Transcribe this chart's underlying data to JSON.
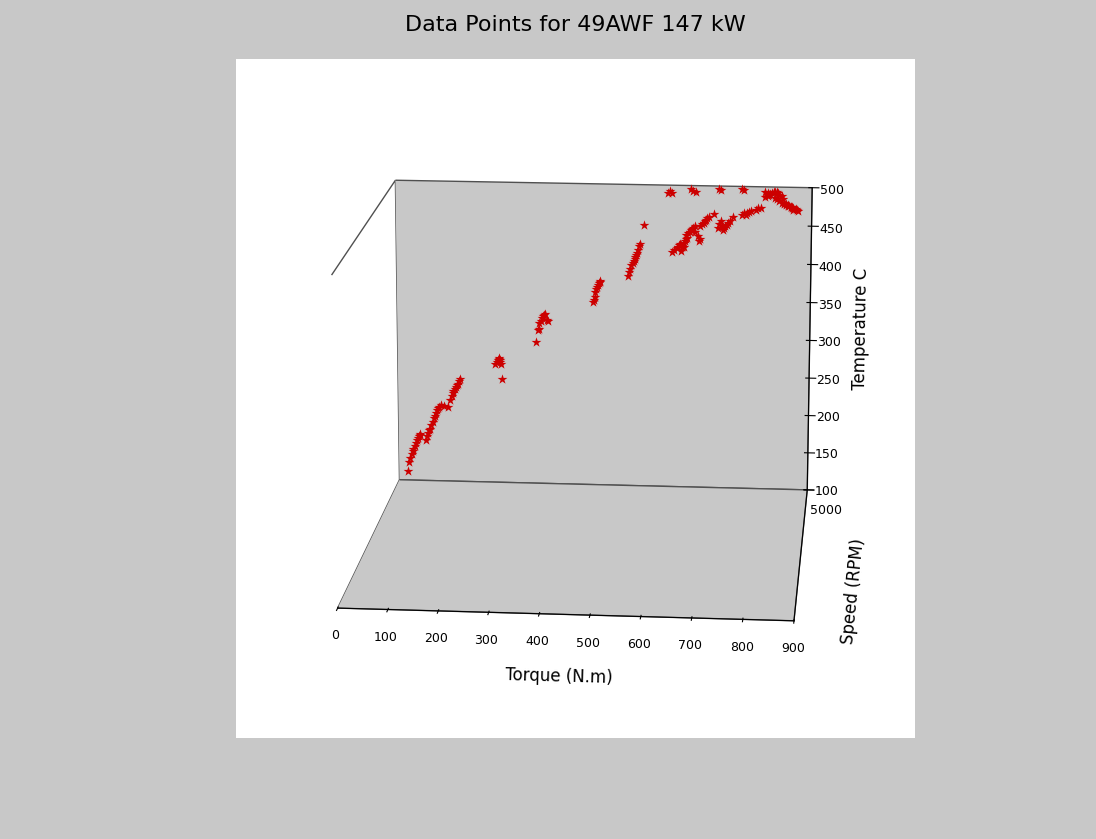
{
  "title": "Data Points for 49AWF 147 kW",
  "xlabel": "Torque (N.m)",
  "ylabel": "Temperature C",
  "zlabel": "Speed (RPM)",
  "xlim": [
    0,
    900
  ],
  "ylim": [
    100,
    500
  ],
  "zlim": [
    0,
    5000
  ],
  "xticks": [
    0,
    100,
    200,
    300,
    400,
    500,
    600,
    700,
    800,
    900
  ],
  "yticks": [
    100,
    150,
    200,
    250,
    300,
    350,
    400,
    450,
    500
  ],
  "zticks": [
    5000
  ],
  "marker_color": "#cc0000",
  "marker_size": 7,
  "background_color": "#c8c8c8",
  "plot_bg_color": "#ffffff",
  "title_fontsize": 16,
  "label_fontsize": 12,
  "data_points": [
    [
      20,
      112
    ],
    [
      22,
      125
    ],
    [
      25,
      130
    ],
    [
      28,
      135
    ],
    [
      30,
      140
    ],
    [
      32,
      143
    ],
    [
      35,
      146
    ],
    [
      38,
      150
    ],
    [
      40,
      155
    ],
    [
      42,
      157
    ],
    [
      45,
      160
    ],
    [
      47,
      162
    ],
    [
      48,
      163
    ],
    [
      60,
      155
    ],
    [
      62,
      160
    ],
    [
      65,
      165
    ],
    [
      68,
      168
    ],
    [
      70,
      170
    ],
    [
      72,
      175
    ],
    [
      75,
      180
    ],
    [
      78,
      185
    ],
    [
      80,
      188
    ],
    [
      82,
      192
    ],
    [
      85,
      196
    ],
    [
      88,
      198
    ],
    [
      90,
      200
    ],
    [
      95,
      203
    ],
    [
      100,
      202
    ],
    [
      110,
      200
    ],
    [
      115,
      210
    ],
    [
      118,
      215
    ],
    [
      120,
      220
    ],
    [
      122,
      222
    ],
    [
      125,
      225
    ],
    [
      128,
      228
    ],
    [
      130,
      230
    ],
    [
      132,
      232
    ],
    [
      134,
      236
    ],
    [
      136,
      238
    ],
    [
      215,
      260
    ],
    [
      218,
      262
    ],
    [
      220,
      265
    ],
    [
      222,
      267
    ],
    [
      224,
      268
    ],
    [
      225,
      265
    ],
    [
      226,
      262
    ],
    [
      228,
      260
    ],
    [
      230,
      240
    ],
    [
      305,
      290
    ],
    [
      308,
      306
    ],
    [
      310,
      308
    ],
    [
      312,
      315
    ],
    [
      315,
      318
    ],
    [
      318,
      322
    ],
    [
      320,
      325
    ],
    [
      322,
      326
    ],
    [
      325,
      328
    ],
    [
      328,
      320
    ],
    [
      330,
      318
    ],
    [
      430,
      345
    ],
    [
      432,
      348
    ],
    [
      433,
      352
    ],
    [
      434,
      358
    ],
    [
      436,
      362
    ],
    [
      438,
      365
    ],
    [
      440,
      368
    ],
    [
      442,
      370
    ],
    [
      444,
      372
    ],
    [
      445,
      373
    ],
    [
      505,
      380
    ],
    [
      508,
      385
    ],
    [
      510,
      390
    ],
    [
      512,
      395
    ],
    [
      515,
      398
    ],
    [
      517,
      400
    ],
    [
      519,
      403
    ],
    [
      520,
      405
    ],
    [
      522,
      408
    ],
    [
      524,
      410
    ],
    [
      526,
      415
    ],
    [
      528,
      420
    ],
    [
      530,
      422
    ],
    [
      540,
      448
    ],
    [
      590,
      490
    ],
    [
      595,
      492
    ],
    [
      600,
      413
    ],
    [
      600,
      490
    ],
    [
      605,
      415
    ],
    [
      610,
      418
    ],
    [
      612,
      420
    ],
    [
      615,
      422
    ],
    [
      618,
      424
    ],
    [
      620,
      415
    ],
    [
      620,
      422
    ],
    [
      622,
      420
    ],
    [
      625,
      420
    ],
    [
      625,
      425
    ],
    [
      628,
      428
    ],
    [
      630,
      430
    ],
    [
      630,
      435
    ],
    [
      632,
      432
    ],
    [
      635,
      438
    ],
    [
      638,
      440
    ],
    [
      640,
      442
    ],
    [
      640,
      495
    ],
    [
      642,
      443
    ],
    [
      645,
      445
    ],
    [
      645,
      493
    ],
    [
      650,
      440
    ],
    [
      650,
      447
    ],
    [
      650,
      492
    ],
    [
      655,
      435
    ],
    [
      658,
      428
    ],
    [
      660,
      430
    ],
    [
      660,
      448
    ],
    [
      665,
      450
    ],
    [
      668,
      452
    ],
    [
      670,
      454
    ],
    [
      672,
      456
    ],
    [
      675,
      458
    ],
    [
      680,
      460
    ],
    [
      690,
      463
    ],
    [
      700,
      445
    ],
    [
      700,
      496
    ],
    [
      702,
      450
    ],
    [
      705,
      455
    ],
    [
      705,
      495
    ],
    [
      708,
      448
    ],
    [
      710,
      443
    ],
    [
      712,
      445
    ],
    [
      715,
      448
    ],
    [
      718,
      450
    ],
    [
      720,
      452
    ],
    [
      725,
      455
    ],
    [
      730,
      460
    ],
    [
      750,
      463
    ],
    [
      750,
      497
    ],
    [
      755,
      465
    ],
    [
      755,
      496
    ],
    [
      758,
      463
    ],
    [
      760,
      465
    ],
    [
      765,
      467
    ],
    [
      770,
      468
    ],
    [
      780,
      470
    ],
    [
      785,
      472
    ],
    [
      790,
      473
    ],
    [
      800,
      487
    ],
    [
      800,
      493
    ],
    [
      805,
      488
    ],
    [
      805,
      492
    ],
    [
      808,
      490
    ],
    [
      810,
      491
    ],
    [
      815,
      492
    ],
    [
      818,
      493
    ],
    [
      820,
      486
    ],
    [
      820,
      493
    ],
    [
      825,
      484
    ],
    [
      825,
      494
    ],
    [
      828,
      492
    ],
    [
      830,
      482
    ],
    [
      830,
      490
    ],
    [
      835,
      480
    ],
    [
      835,
      488
    ],
    [
      838,
      485
    ],
    [
      840,
      478
    ],
    [
      840,
      480
    ],
    [
      845,
      477
    ],
    [
      845,
      478
    ],
    [
      848,
      476
    ],
    [
      848,
      477
    ],
    [
      850,
      476
    ],
    [
      855,
      474
    ],
    [
      855,
      475
    ],
    [
      858,
      473
    ],
    [
      858,
      474
    ],
    [
      860,
      470
    ],
    [
      860,
      473
    ],
    [
      865,
      472
    ],
    [
      868,
      471
    ],
    [
      870,
      470
    ]
  ]
}
